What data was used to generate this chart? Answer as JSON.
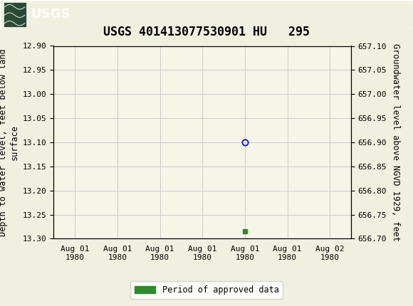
{
  "title": "USGS 401413077530901 HU   295",
  "ylabel_left": "Depth to water level, feet below land\nsurface",
  "ylabel_right": "Groundwater level above NGVD 1929, feet",
  "ylim_left_top": 12.9,
  "ylim_left_bottom": 13.3,
  "ylim_right_top": 657.1,
  "ylim_right_bottom": 656.7,
  "left_yticks": [
    12.9,
    12.95,
    13.0,
    13.05,
    13.1,
    13.15,
    13.2,
    13.25,
    13.3
  ],
  "right_yticks": [
    657.1,
    657.05,
    657.0,
    656.95,
    656.9,
    656.85,
    656.8,
    656.75,
    656.7
  ],
  "data_point_x": 4.0,
  "data_point_y": 13.1,
  "green_bar_x": 4.0,
  "green_bar_y": 13.285,
  "header_color": "#1a6b3c",
  "grid_color": "#cccccc",
  "point_color": "#0000cc",
  "green_color": "#2d8a2d",
  "bg_color": "#f5f5e8",
  "fig_bg_color": "#f0f0e0",
  "legend_label": "Period of approved data",
  "xtick_labels": [
    "Aug 01\n1980",
    "Aug 01\n1980",
    "Aug 01\n1980",
    "Aug 01\n1980",
    "Aug 01\n1980",
    "Aug 01\n1980",
    "Aug 02\n1980"
  ],
  "xtick_positions": [
    0,
    1,
    2,
    3,
    4,
    5,
    6
  ],
  "title_fontsize": 12,
  "axis_label_fontsize": 8.5,
  "tick_fontsize": 8,
  "font_family": "monospace",
  "xlim": [
    -0.5,
    6.5
  ]
}
